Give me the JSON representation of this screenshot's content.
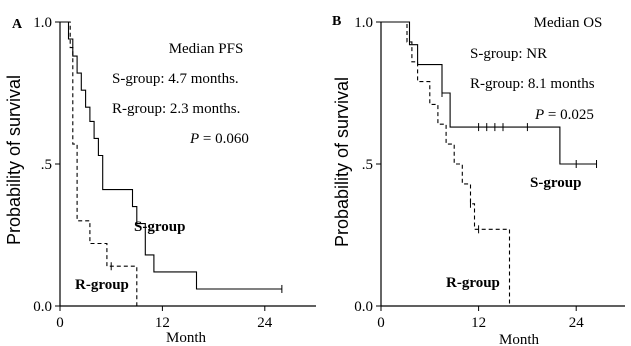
{
  "chart_data": [
    {
      "type": "line",
      "panel_label": "A",
      "ylabel": "Probability of survival",
      "xlabel": "Month",
      "xlim": [
        0,
        30
      ],
      "ylim": [
        0,
        1
      ],
      "x_ticks": [
        0,
        12,
        24
      ],
      "x_tick_labels": [
        "0",
        "12",
        "24"
      ],
      "y_ticks": [
        0,
        0.5,
        1
      ],
      "y_tick_labels": [
        "0.0",
        ".5",
        "1.0"
      ],
      "annotations": {
        "header": "Median PFS",
        "s_line": "S-group: 4.7 months.",
        "r_line": "R-group: 2.3 months.",
        "p_label": "P",
        "p_value": " = 0.060"
      },
      "series": [
        {
          "name": "S-group",
          "style": "solid",
          "x": [
            0,
            1,
            1.5,
            2,
            2.5,
            3,
            3.5,
            4,
            4.5,
            5,
            8.5,
            9,
            10,
            11,
            16,
            26
          ],
          "y": [
            1.0,
            0.94,
            0.88,
            0.82,
            0.76,
            0.7,
            0.65,
            0.59,
            0.53,
            0.41,
            0.35,
            0.29,
            0.18,
            0.12,
            0.06,
            0.06
          ],
          "censored": [
            [
              26,
              0.06
            ]
          ]
        },
        {
          "name": "R-group",
          "style": "dashed",
          "x": [
            0,
            1.2,
            1.5,
            2,
            3.5,
            5.5,
            6,
            9
          ],
          "y": [
            1.0,
            0.91,
            0.57,
            0.3,
            0.22,
            0.14,
            0.14,
            0.0
          ],
          "censored": [
            [
              6,
              0.14
            ]
          ]
        }
      ]
    },
    {
      "type": "line",
      "panel_label": "B",
      "ylabel": "Probability of survival",
      "xlabel": "Month",
      "xlim": [
        0,
        30
      ],
      "ylim": [
        0,
        1
      ],
      "x_ticks": [
        0,
        12,
        24
      ],
      "x_tick_labels": [
        "0",
        "12",
        "24"
      ],
      "y_ticks": [
        0,
        0.5,
        1
      ],
      "y_tick_labels": [
        "0.0",
        ".5",
        "1.0"
      ],
      "annotations": {
        "header": "Median OS",
        "s_line": "S-group: NR",
        "r_line": "R-group: 8.1 months",
        "p_label": "P",
        "p_value": " = 0.025"
      },
      "series": [
        {
          "name": "S-group",
          "style": "solid",
          "x": [
            0,
            3.5,
            4.5,
            7.5,
            8.5,
            22,
            26.5
          ],
          "y": [
            1.0,
            0.92,
            0.85,
            0.75,
            0.63,
            0.5,
            0.5
          ],
          "censored": [
            [
              7.5,
              0.75
            ],
            [
              12,
              0.63
            ],
            [
              13,
              0.63
            ],
            [
              14,
              0.63
            ],
            [
              15,
              0.63
            ],
            [
              18,
              0.63
            ],
            [
              24,
              0.5
            ],
            [
              26.5,
              0.5
            ]
          ]
        },
        {
          "name": "R-group",
          "style": "dashed",
          "x": [
            0,
            3.2,
            3.8,
            4.5,
            6,
            7,
            8,
            9,
            10,
            11,
            11.5,
            12,
            15.8
          ],
          "y": [
            1.0,
            0.93,
            0.86,
            0.79,
            0.71,
            0.64,
            0.57,
            0.5,
            0.43,
            0.36,
            0.27,
            0.27,
            0.0
          ],
          "censored": [
            [
              11,
              0.36
            ],
            [
              12,
              0.27
            ]
          ]
        }
      ]
    }
  ]
}
